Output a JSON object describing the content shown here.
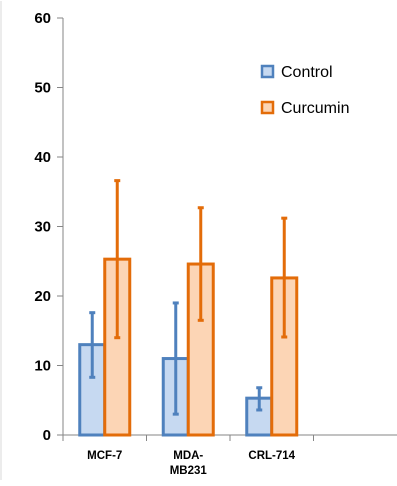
{
  "chart_data": {
    "type": "bar",
    "title": "",
    "xlabel": "",
    "ylabel": "",
    "categories": [
      [
        "MCF-7"
      ],
      [
        "MDA-",
        "MB231"
      ],
      [
        "CRL-714"
      ]
    ],
    "ylim": [
      0,
      60
    ],
    "yticks": [
      0,
      10,
      20,
      30,
      40,
      50,
      60
    ],
    "grid": false,
    "legend_position": "top-right",
    "error_bars": true,
    "series": [
      {
        "name": "Control",
        "values": [
          13,
          11,
          5.3
        ],
        "error_low": [
          8.3,
          3,
          3.6
        ],
        "error_high": [
          17.6,
          19,
          6.8
        ],
        "fill": "#c6d9f1",
        "edge": "#4f81bd",
        "error_color": "#4f81bd"
      },
      {
        "name": "Curcumin",
        "values": [
          25.3,
          24.6,
          22.6
        ],
        "error_low": [
          14,
          16.5,
          14.1
        ],
        "error_high": [
          36.6,
          32.7,
          31.2
        ],
        "fill": "#fcd5b5",
        "edge": "#e36c09",
        "error_color": "#e36c09"
      }
    ],
    "axis_color": "#868686"
  }
}
